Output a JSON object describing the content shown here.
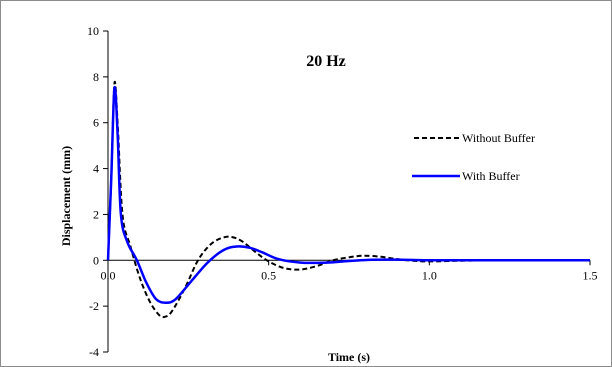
{
  "chart_data": {
    "type": "line",
    "title": "20 Hz",
    "xlabel": "Time (s)",
    "ylabel": "Displacement (mm)",
    "xlim": [
      0,
      1.5
    ],
    "ylim": [
      -4,
      10
    ],
    "x_ticks": [
      "0.0",
      "0.5",
      "1.0",
      "1.5"
    ],
    "x_tick_values": [
      0,
      0.5,
      1.0,
      1.5
    ],
    "y_ticks": [
      "-4",
      "-2",
      "0",
      "2",
      "4",
      "6",
      "8",
      "10"
    ],
    "y_tick_values": [
      -4,
      -2,
      0,
      2,
      4,
      6,
      8,
      10
    ],
    "grid": false,
    "legend_position": "right",
    "series": [
      {
        "name": "Without Buffer",
        "color": "#000000",
        "style": "dashed",
        "points": [
          [
            0,
            0
          ],
          [
            0.01,
            3.5
          ],
          [
            0.02,
            7.7
          ],
          [
            0.03,
            6.0
          ],
          [
            0.045,
            2.0
          ],
          [
            0.07,
            0.6
          ],
          [
            0.1,
            -0.8
          ],
          [
            0.13,
            -1.8
          ],
          [
            0.16,
            -2.4
          ],
          [
            0.18,
            -2.45
          ],
          [
            0.2,
            -2.2
          ],
          [
            0.24,
            -1.2
          ],
          [
            0.28,
            0.0
          ],
          [
            0.32,
            0.7
          ],
          [
            0.36,
            1.0
          ],
          [
            0.39,
            1.0
          ],
          [
            0.42,
            0.8
          ],
          [
            0.46,
            0.35
          ],
          [
            0.5,
            -0.05
          ],
          [
            0.55,
            -0.35
          ],
          [
            0.6,
            -0.4
          ],
          [
            0.65,
            -0.25
          ],
          [
            0.7,
            0.0
          ],
          [
            0.76,
            0.15
          ],
          [
            0.8,
            0.2
          ],
          [
            0.85,
            0.15
          ],
          [
            0.9,
            0.05
          ],
          [
            0.95,
            -0.02
          ],
          [
            1.0,
            -0.05
          ],
          [
            1.1,
            -0.02
          ],
          [
            1.2,
            0.0
          ],
          [
            1.35,
            0.0
          ],
          [
            1.5,
            0.0
          ]
        ]
      },
      {
        "name": "With Buffer",
        "color": "#0000ff",
        "style": "solid",
        "points": [
          [
            0,
            0
          ],
          [
            0.01,
            3.5
          ],
          [
            0.02,
            7.5
          ],
          [
            0.03,
            5.5
          ],
          [
            0.04,
            2.0
          ],
          [
            0.06,
            0.8
          ],
          [
            0.09,
            0.0
          ],
          [
            0.12,
            -1.0
          ],
          [
            0.15,
            -1.7
          ],
          [
            0.18,
            -1.85
          ],
          [
            0.21,
            -1.7
          ],
          [
            0.26,
            -0.9
          ],
          [
            0.31,
            -0.1
          ],
          [
            0.36,
            0.45
          ],
          [
            0.4,
            0.6
          ],
          [
            0.44,
            0.55
          ],
          [
            0.48,
            0.35
          ],
          [
            0.53,
            0.05
          ],
          [
            0.6,
            -0.1
          ],
          [
            0.68,
            -0.1
          ],
          [
            0.75,
            -0.03
          ],
          [
            0.82,
            0.02
          ],
          [
            0.9,
            0.03
          ],
          [
            1.0,
            0.0
          ],
          [
            1.2,
            0.0
          ],
          [
            1.5,
            0.0
          ]
        ]
      }
    ]
  }
}
